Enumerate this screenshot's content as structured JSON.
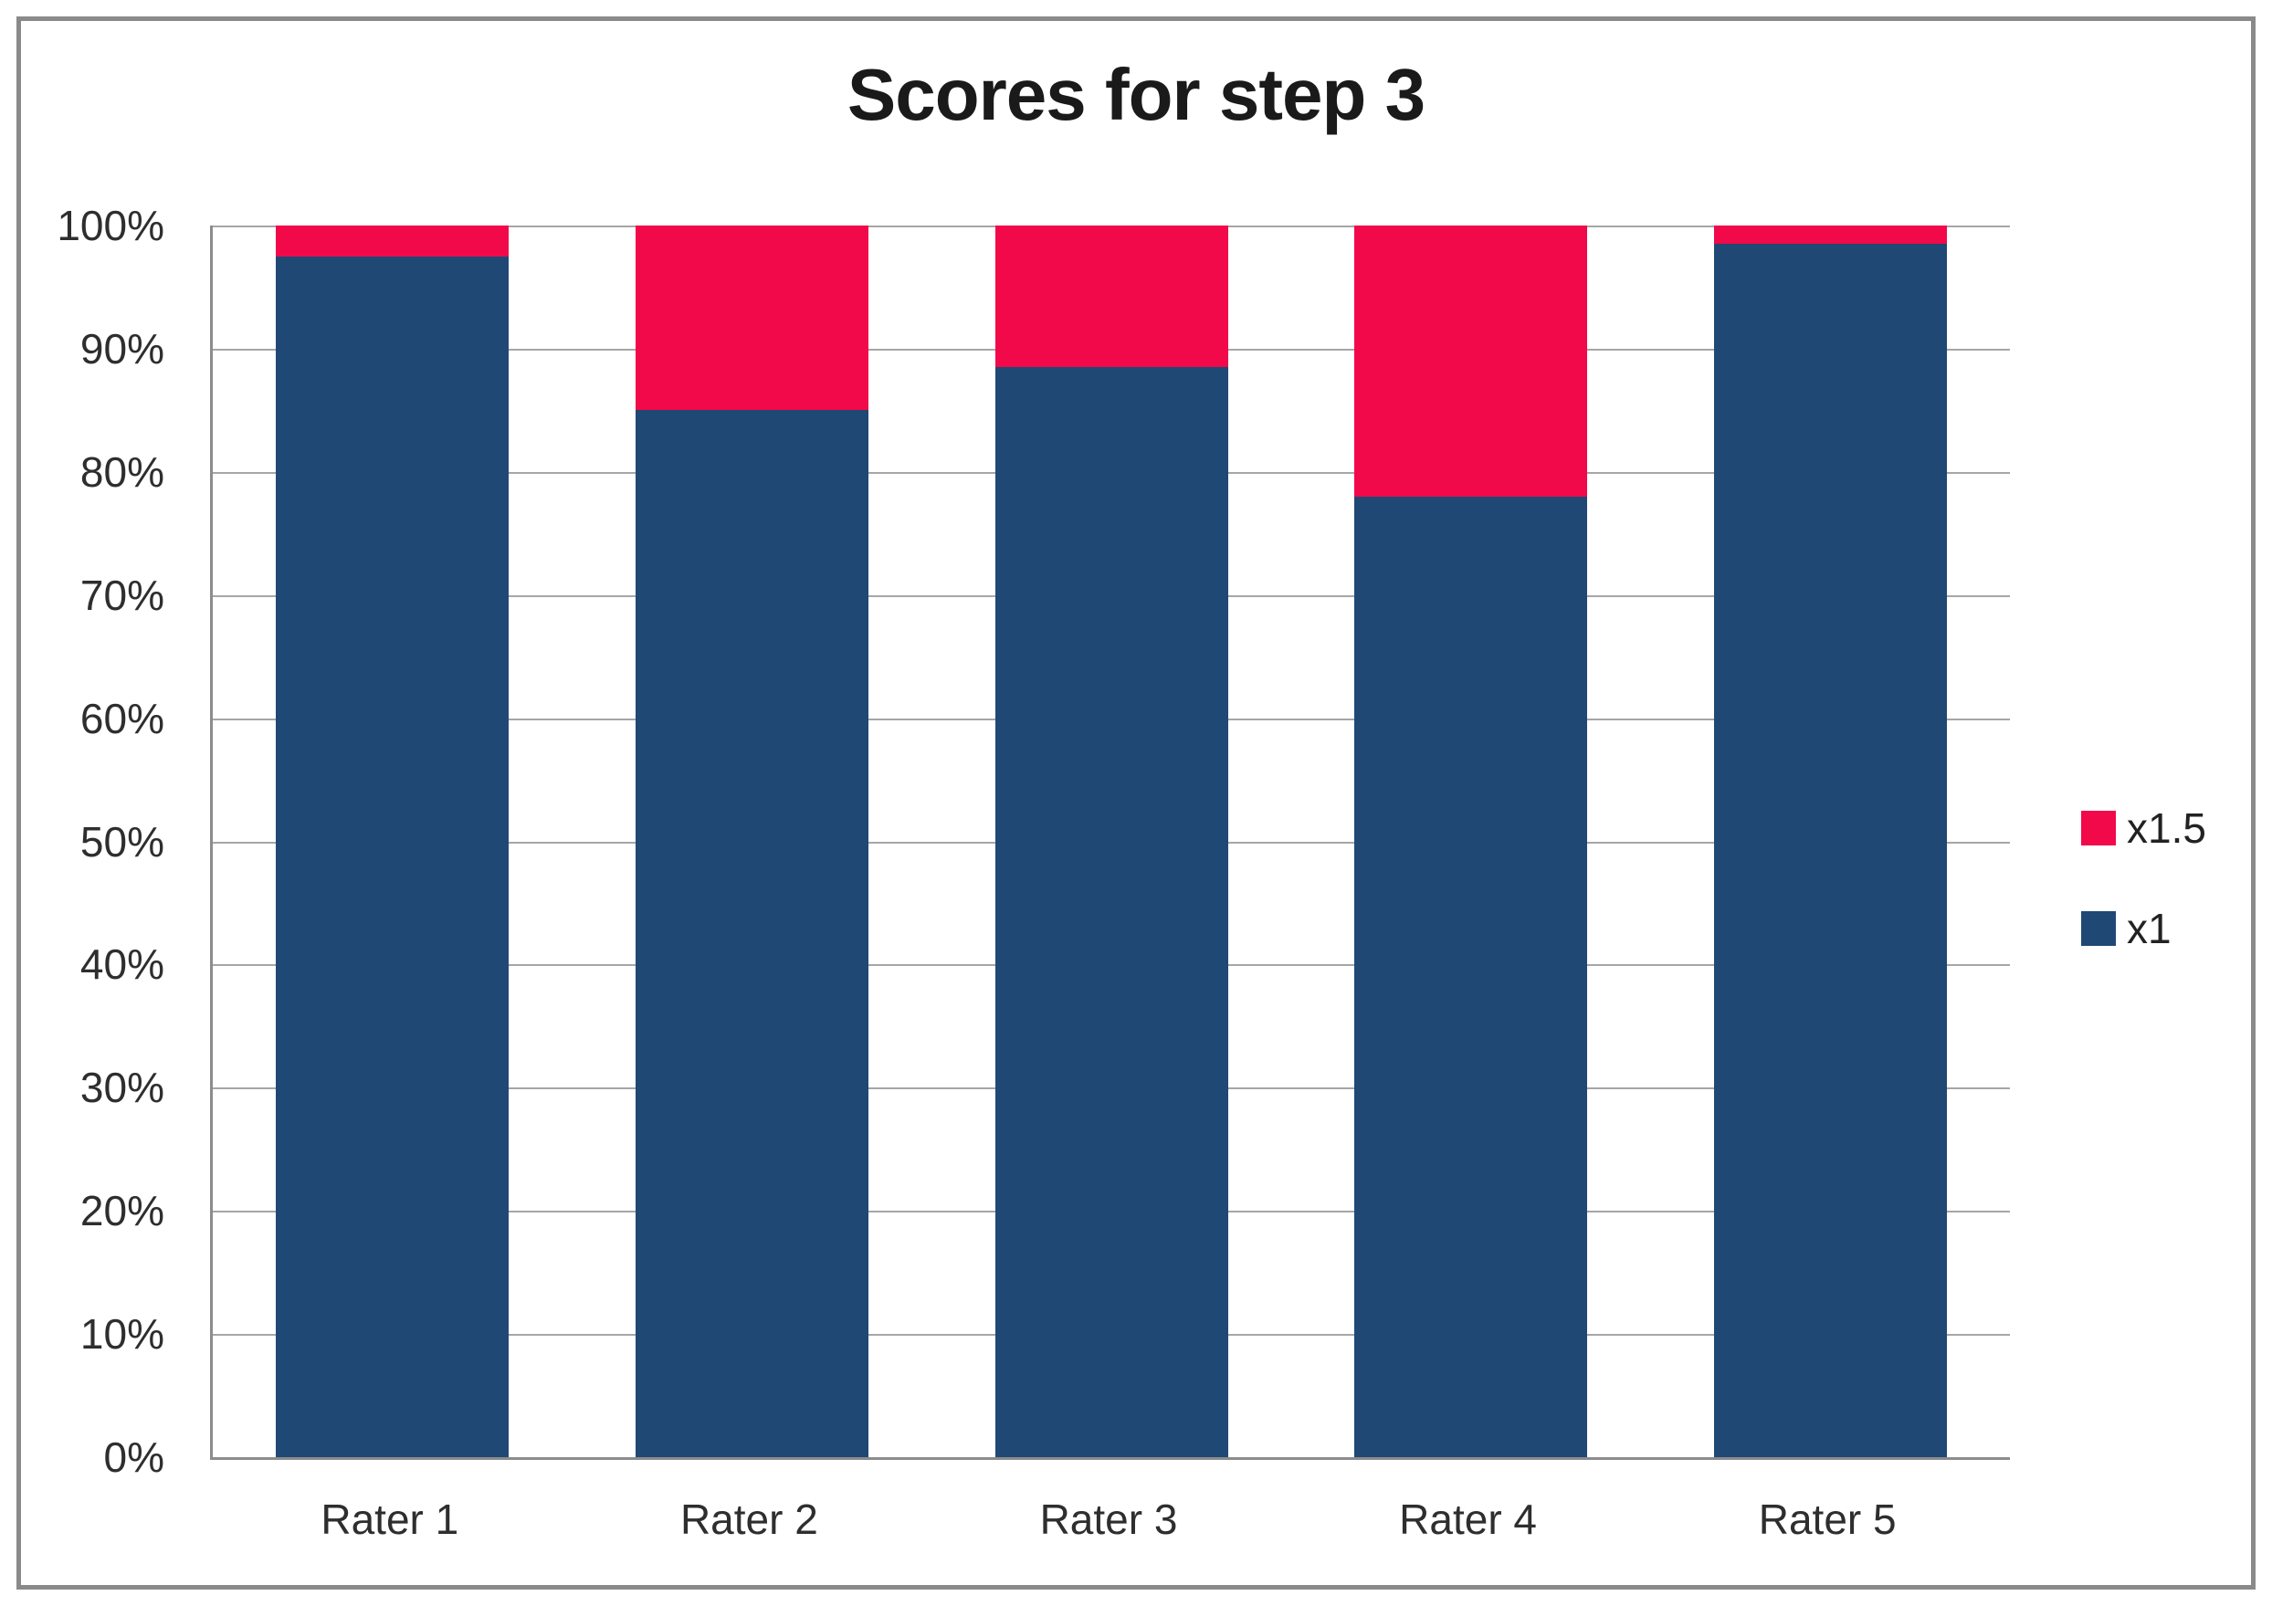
{
  "frame": {
    "border_color": "#8a8a8a",
    "background": "#ffffff"
  },
  "chart_data": {
    "type": "bar",
    "stacked": true,
    "units": "percent",
    "title": "Scores for step 3",
    "categories": [
      "Rater 1",
      "Rater 2",
      "Rater 3",
      "Rater 4",
      "Rater 5"
    ],
    "series": [
      {
        "name": "x1",
        "color": "#1F4875",
        "values": [
          97.5,
          85,
          88.5,
          78,
          98.5
        ]
      },
      {
        "name": "x1.5",
        "color": "#F2094A",
        "values": [
          2.5,
          15,
          11.5,
          22,
          1.5
        ]
      }
    ],
    "y_ticks": [
      "0%",
      "10%",
      "20%",
      "30%",
      "40%",
      "50%",
      "60%",
      "70%",
      "80%",
      "90%",
      "100%"
    ],
    "ylim": [
      0,
      100
    ],
    "grid": true,
    "gridline_color": "#a6a6a6",
    "axis_color": "#8c8c8c",
    "legend_position": "right",
    "legend_order": [
      "x1.5",
      "x1"
    ]
  }
}
